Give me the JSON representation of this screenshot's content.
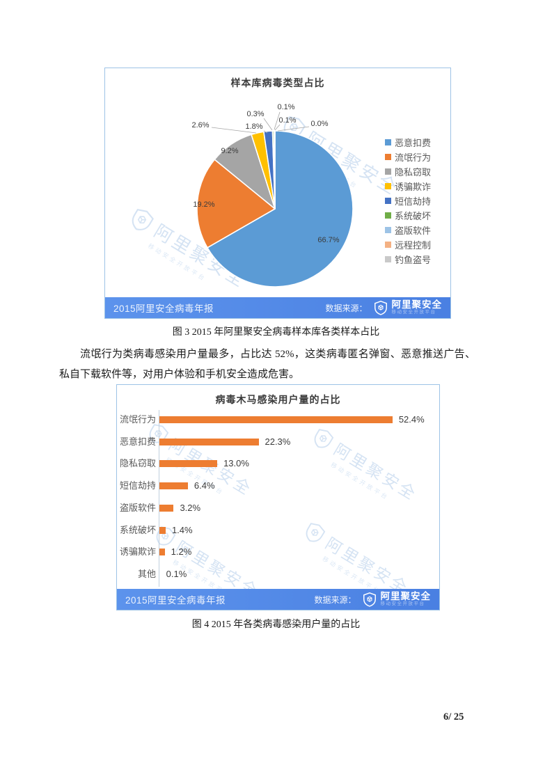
{
  "page": {
    "number_label": "6/ 25"
  },
  "paragraph": {
    "text": "流氓行为类病毒感染用户量最多，占比达 52%，这类病毒匿名弹窗、恶意推送广告、私自下载软件等，对用户体验和手机安全造成危害。"
  },
  "captions": {
    "fig3": "图 3 2015 年阿里聚安全病毒样本库各类样本占比",
    "fig4": "图 4 2015 年各类病毒感染用户量的占比"
  },
  "branding": {
    "report_name": "2015阿里安全病毒年报",
    "source_label": "数据来源：",
    "logo_name": "阿里聚安全",
    "logo_tagline": "移动安全开放平台",
    "watermark_text": "阿里聚安全",
    "watermark_tagline": "移动安全开放平台"
  },
  "colors": {
    "footer_blue_left": "#5C93EC",
    "footer_blue_right": "#4A80E2",
    "chart_border": "#9DC3E6",
    "bar_orange": "#ED7D31",
    "watermark_blue": "#CBDDF1",
    "legend_text": "#595959"
  },
  "chart_data": [
    {
      "type": "pie",
      "title": "样本库病毒类型占比",
      "categories": [
        "恶意扣费",
        "流氓行为",
        "隐私窃取",
        "诱骗欺诈",
        "短信劫持",
        "系统破坏",
        "盗版软件",
        "远程控制",
        "钓鱼盗号"
      ],
      "values": [
        66.7,
        19.2,
        9.2,
        2.6,
        1.8,
        0.3,
        0.1,
        0.1,
        0.0
      ],
      "labels": [
        "66.7%",
        "19.2%",
        "9.2%",
        "2.6%",
        "1.8%",
        "0.3%",
        "0.1%",
        "0.1%",
        "0.0%"
      ],
      "colors": [
        "#5B9BD5",
        "#ED7D31",
        "#A5A5A5",
        "#FFC000",
        "#4472C4",
        "#70AD47",
        "#9DC3E6",
        "#F4B183",
        "#C9C9C9"
      ],
      "start_angle_deg": 0,
      "direction": "clockwise",
      "legend_position": "right"
    },
    {
      "type": "bar",
      "orientation": "horizontal",
      "title": "病毒木马感染用户量的占比",
      "categories": [
        "流氓行为",
        "恶意扣费",
        "隐私窃取",
        "短信劫持",
        "盗版软件",
        "系统破坏",
        "诱骗欺诈",
        "其他"
      ],
      "values": [
        52.4,
        22.3,
        13.0,
        6.4,
        3.2,
        1.4,
        1.2,
        0.1
      ],
      "labels": [
        "52.4%",
        "22.3%",
        "13.0%",
        "6.4%",
        "3.2%",
        "1.4%",
        "1.2%",
        "0.1%"
      ],
      "bar_color": "#ED7D31",
      "xlim": [
        0,
        56
      ],
      "grid": false
    }
  ]
}
